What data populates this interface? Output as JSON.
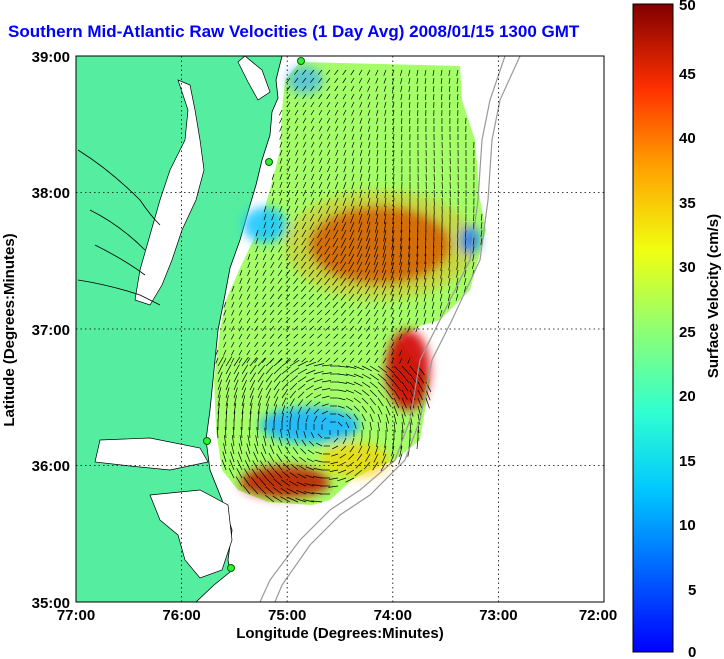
{
  "title": "Southern Mid-Atlantic Raw Velocities (1 Day Avg) 2008/01/15 1300 GMT",
  "x_axis": {
    "label": "Longitude (Degrees:Minutes)",
    "ticks": [
      "77:00",
      "76:00",
      "75:00",
      "74:00",
      "73:00",
      "72:00"
    ]
  },
  "y_axis": {
    "label": "Latitude (Degrees:Minutes)",
    "ticks": [
      "39:00",
      "38:00",
      "37:00",
      "36:00",
      "35:00"
    ]
  },
  "colorbar": {
    "label": "Surface Velocity (cm/s)",
    "ticks": [
      "50",
      "45",
      "40",
      "35",
      "30",
      "25",
      "20",
      "15",
      "10",
      "5",
      "0"
    ],
    "min": 0,
    "max": 50
  },
  "map": {
    "lon_range": [
      -77,
      -72
    ],
    "lat_range": [
      35,
      39
    ],
    "land_color": "#55eea0",
    "grid": "dotted",
    "colormap": "jet",
    "features": [
      "land",
      "coastline",
      "bathymetry-contours",
      "velocity-field",
      "current-vectors",
      "radar-sites"
    ]
  }
}
